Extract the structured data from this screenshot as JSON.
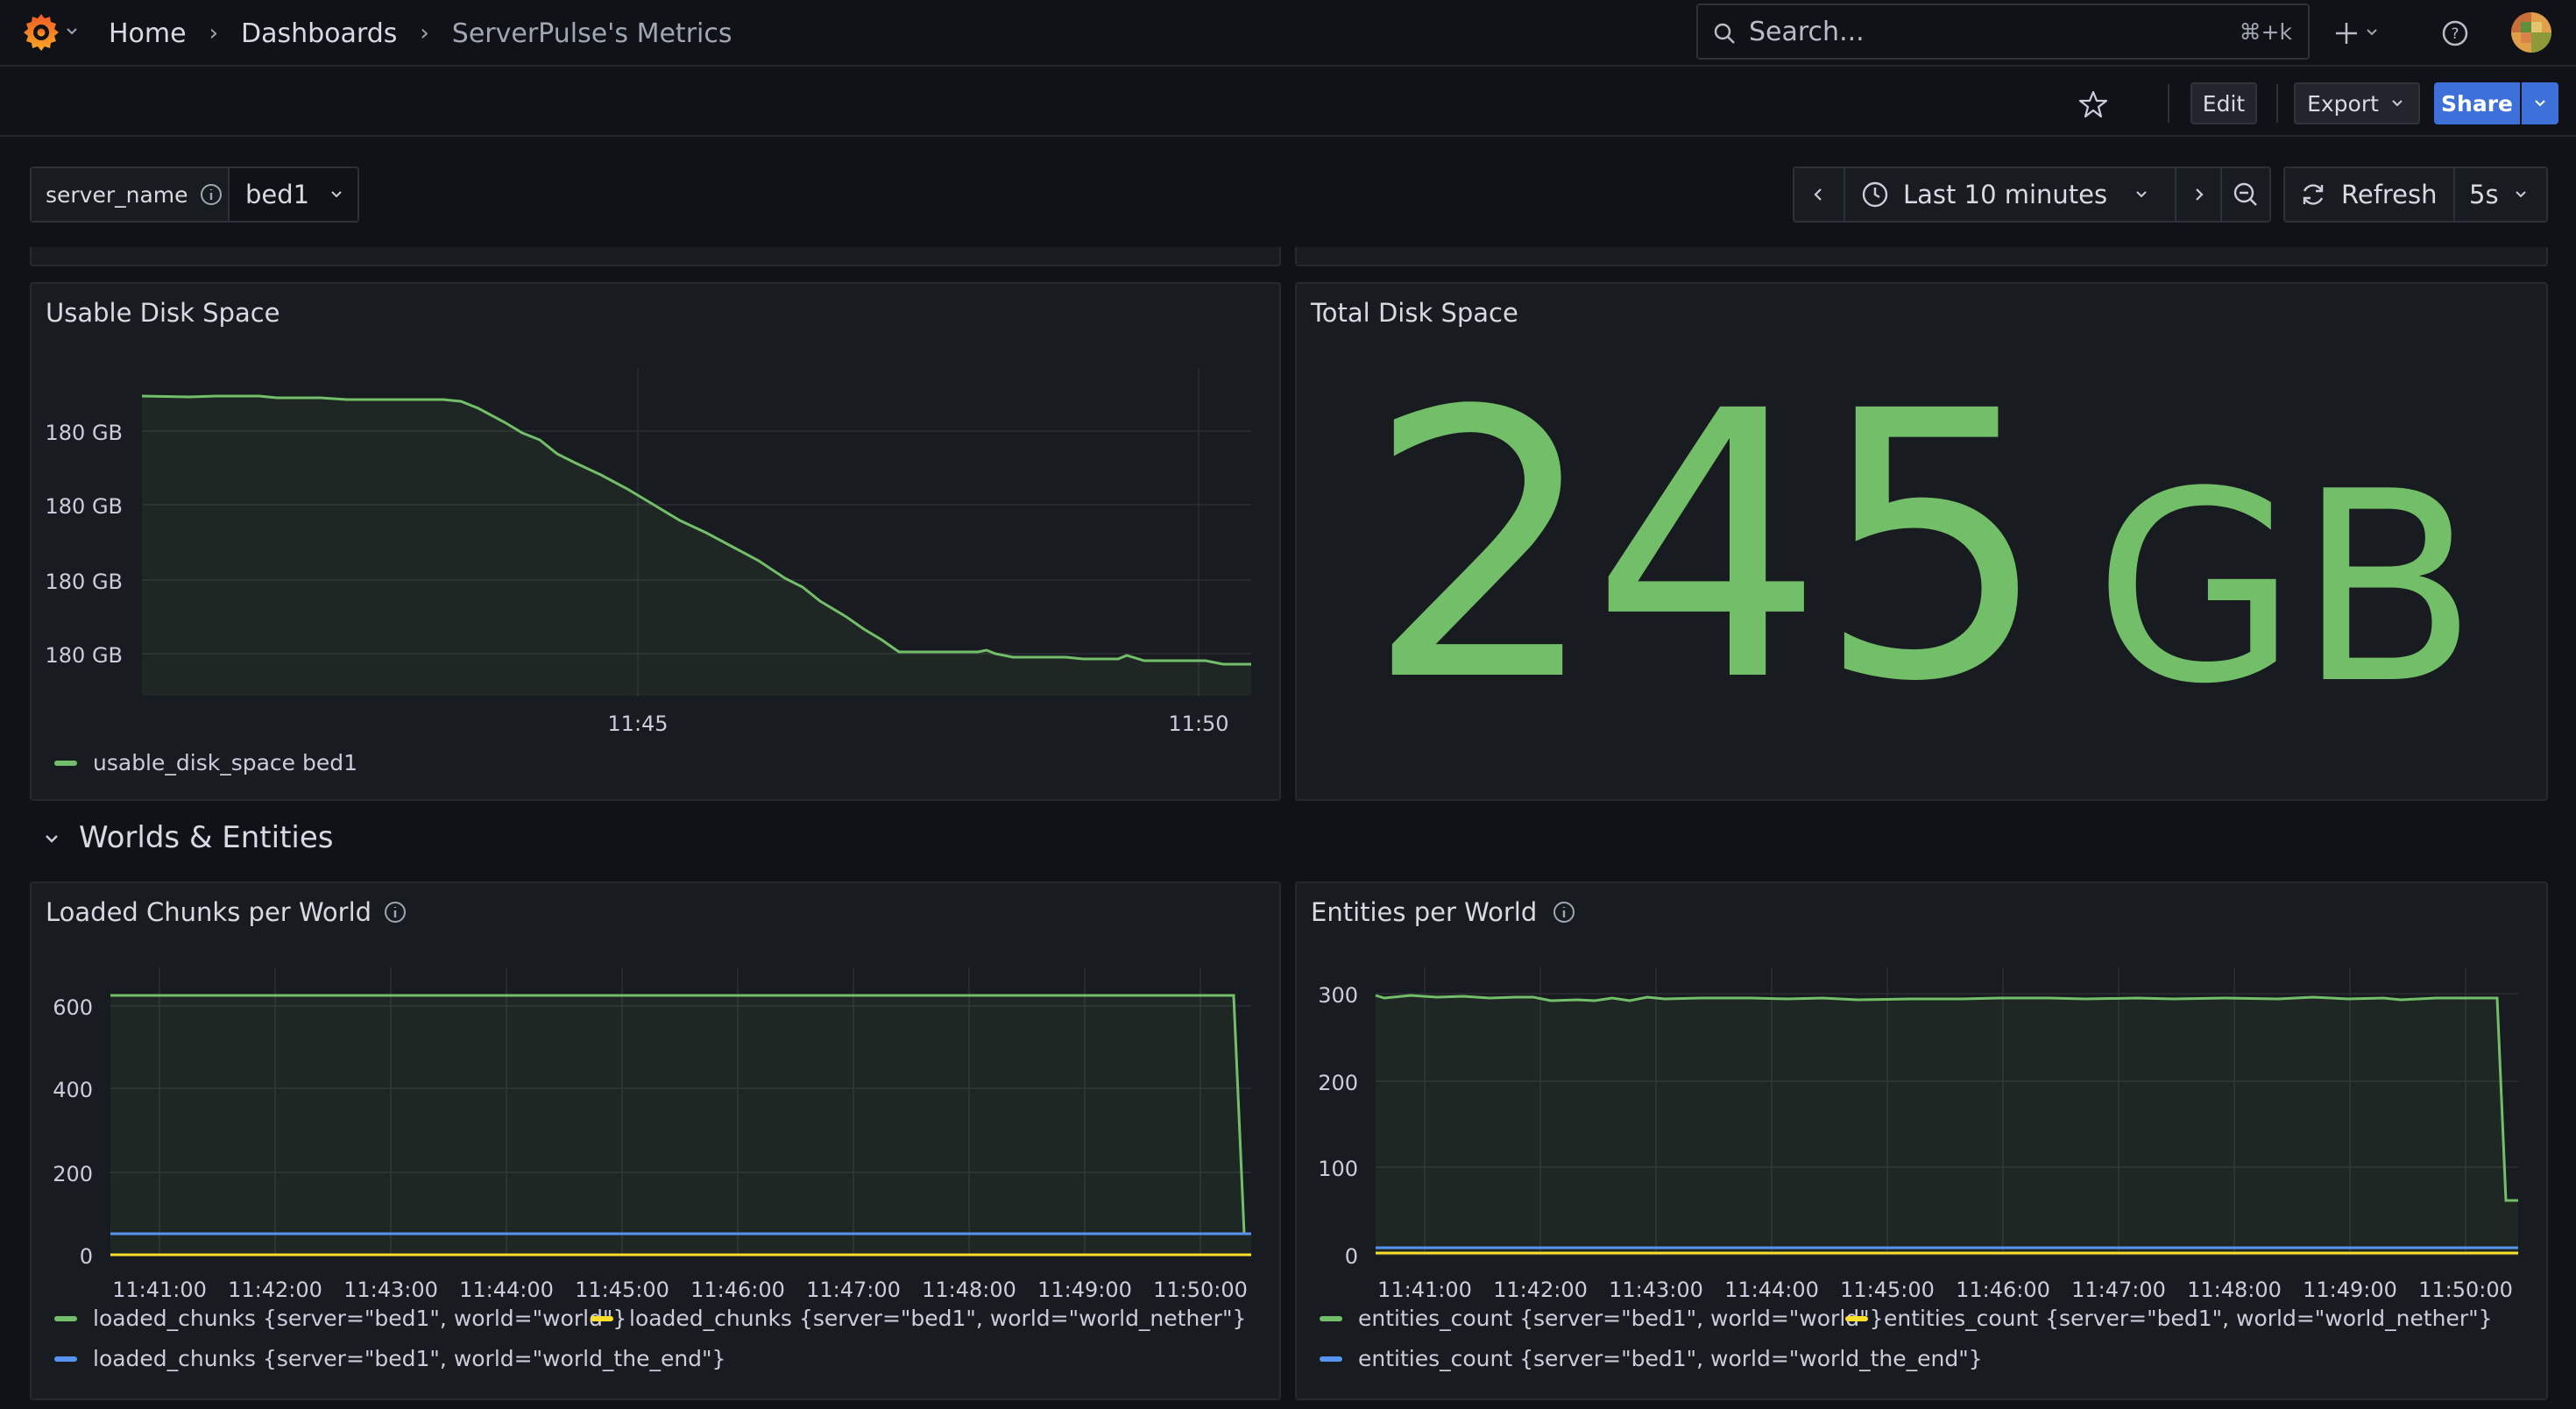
{
  "breadcrumb": {
    "home": "Home",
    "dashboards": "Dashboards",
    "current": "ServerPulse's Metrics"
  },
  "search": {
    "placeholder": "Search...",
    "shortcut": "⌘+k"
  },
  "toolbar": {
    "edit": "Edit",
    "export": "Export",
    "share": "Share"
  },
  "variables": {
    "server_name_label": "server_name",
    "server_name_value": "bed1"
  },
  "time": {
    "range": "Last 10 minutes",
    "refresh_label": "Refresh",
    "refresh_interval": "5s"
  },
  "colors": {
    "green": "#73bf69",
    "yellow": "#fade2a",
    "blue": "#5794f2",
    "accent": "#3d71d9"
  },
  "icons": [
    "grafana-logo-icon",
    "chevron-down-icon",
    "search-icon",
    "plus-icon",
    "help-icon",
    "avatar",
    "star-icon",
    "chevron-left-icon",
    "clock-icon",
    "chevron-right-icon",
    "zoom-out-icon",
    "refresh-icon",
    "info-icon"
  ],
  "panels": {
    "usable": {
      "title": "Usable Disk Space",
      "y_ticks": [
        "180 GB",
        "180 GB",
        "180 GB",
        "180 GB"
      ],
      "x_ticks": [
        "11:45",
        "11:50"
      ],
      "legend": "usable_disk_space bed1"
    },
    "total": {
      "title": "Total Disk Space",
      "value": "245",
      "unit": "GB"
    },
    "row": {
      "title": "Worlds & Entities"
    },
    "chunks": {
      "title": "Loaded Chunks per World",
      "y_ticks": [
        "600",
        "400",
        "200",
        "0"
      ],
      "x_ticks": [
        "11:41:00",
        "11:42:00",
        "11:43:00",
        "11:44:00",
        "11:45:00",
        "11:46:00",
        "11:47:00",
        "11:48:00",
        "11:49:00",
        "11:50:00"
      ],
      "legend": [
        "loaded_chunks {server=\"bed1\", world=\"world\"}",
        "loaded_chunks {server=\"bed1\", world=\"world_nether\"}",
        "loaded_chunks {server=\"bed1\", world=\"world_the_end\"}"
      ]
    },
    "entities": {
      "title": "Entities per World",
      "y_ticks": [
        "300",
        "200",
        "100",
        "0"
      ],
      "x_ticks": [
        "11:41:00",
        "11:42:00",
        "11:43:00",
        "11:44:00",
        "11:45:00",
        "11:46:00",
        "11:47:00",
        "11:48:00",
        "11:49:00",
        "11:50:00"
      ],
      "legend": [
        "entities_count {server=\"bed1\", world=\"world\"}",
        "entities_count {server=\"bed1\", world=\"world_nether\"}",
        "entities_count {server=\"bed1\", world=\"world_the_end\"}"
      ]
    }
  },
  "chart_data": [
    {
      "type": "area",
      "title": "Usable Disk Space",
      "ylabel": "",
      "series": [
        {
          "name": "usable_disk_space bed1",
          "x": [
            "11:41:00",
            "11:42:00",
            "11:43:00",
            "11:44:00",
            "11:45:00",
            "11:46:00",
            "11:47:00",
            "11:48:00",
            "11:49:00",
            "11:50:00",
            "11:50:36"
          ],
          "values": [
            180.9,
            180.9,
            180.85,
            180.6,
            180.4,
            180.15,
            180.05,
            180.05,
            180.03,
            180.02,
            180.0
          ]
        }
      ]
    },
    {
      "type": "line",
      "title": "Loaded Chunks per World",
      "ylim": [
        0,
        650
      ],
      "x": [
        "11:41:00",
        "11:42:00",
        "11:43:00",
        "11:44:00",
        "11:45:00",
        "11:46:00",
        "11:47:00",
        "11:48:00",
        "11:49:00",
        "11:50:00",
        "11:50:30"
      ],
      "series": [
        {
          "name": "loaded_chunks {server=\"bed1\", world=\"world\"}",
          "values": [
            625,
            625,
            625,
            625,
            625,
            625,
            625,
            625,
            625,
            625,
            50
          ]
        },
        {
          "name": "loaded_chunks {server=\"bed1\", world=\"world_nether\"}",
          "values": [
            0,
            0,
            0,
            0,
            0,
            0,
            0,
            0,
            0,
            0,
            0
          ]
        },
        {
          "name": "loaded_chunks {server=\"bed1\", world=\"world_the_end\"}",
          "values": [
            50,
            50,
            50,
            50,
            50,
            50,
            50,
            50,
            50,
            50,
            50
          ]
        }
      ]
    },
    {
      "type": "line",
      "title": "Entities per World",
      "ylim": [
        0,
        310
      ],
      "x": [
        "11:41:00",
        "11:42:00",
        "11:43:00",
        "11:44:00",
        "11:45:00",
        "11:46:00",
        "11:47:00",
        "11:48:00",
        "11:49:00",
        "11:50:00",
        "11:50:30"
      ],
      "series": [
        {
          "name": "entities_count {server=\"bed1\", world=\"world\"}",
          "values": [
            297,
            296,
            294,
            295,
            294,
            295,
            295,
            295,
            294,
            294,
            87
          ]
        },
        {
          "name": "entities_count {server=\"bed1\", world=\"world_nether\"}",
          "values": [
            2,
            2,
            2,
            2,
            2,
            2,
            2,
            2,
            2,
            2,
            2
          ]
        },
        {
          "name": "entities_count {server=\"bed1\", world=\"world_the_end\"}",
          "values": [
            8,
            8,
            8,
            8,
            8,
            8,
            8,
            8,
            8,
            8,
            8
          ]
        }
      ]
    }
  ]
}
